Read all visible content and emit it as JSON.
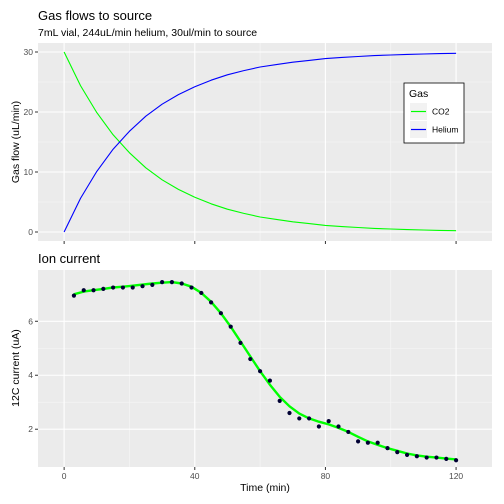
{
  "chart_data": [
    {
      "type": "line",
      "title": "Gas flows to source",
      "subtitle": "7mL vial, 244uL/min helium, 30ul/min to source",
      "xlabel": "",
      "ylabel": "Gas flow (uL/min)",
      "xlim": [
        -8,
        131
      ],
      "ylim": [
        -1.5,
        31.5
      ],
      "y_ticks": [
        0,
        10,
        20,
        30
      ],
      "x_tick_positions": [
        0,
        40,
        80,
        120
      ],
      "x_tick_labels_shown": false,
      "grid": true,
      "legend": {
        "title": "Gas",
        "position": "right",
        "entries": [
          "CO2",
          "Helium"
        ]
      },
      "series": [
        {
          "name": "CO2",
          "color": "#00ff00",
          "x": [
            0,
            5,
            10,
            15,
            20,
            25,
            30,
            35,
            40,
            45,
            50,
            55,
            60,
            65,
            70,
            75,
            80,
            85,
            90,
            95,
            100,
            105,
            110,
            115,
            120
          ],
          "values": [
            30.0,
            24.4,
            19.9,
            16.2,
            13.2,
            10.7,
            8.7,
            7.1,
            5.8,
            4.7,
            3.8,
            3.1,
            2.5,
            2.1,
            1.7,
            1.4,
            1.1,
            0.9,
            0.75,
            0.6,
            0.5,
            0.4,
            0.33,
            0.27,
            0.22
          ]
        },
        {
          "name": "Helium",
          "color": "#0000ff",
          "x": [
            0,
            5,
            10,
            15,
            20,
            25,
            30,
            35,
            40,
            45,
            50,
            55,
            60,
            65,
            70,
            75,
            80,
            85,
            90,
            95,
            100,
            105,
            110,
            115,
            120
          ],
          "values": [
            0.0,
            5.6,
            10.1,
            13.8,
            16.8,
            19.3,
            21.3,
            22.9,
            24.2,
            25.3,
            26.2,
            26.9,
            27.5,
            27.9,
            28.3,
            28.6,
            28.9,
            29.1,
            29.25,
            29.4,
            29.5,
            29.6,
            29.67,
            29.73,
            29.78
          ]
        }
      ]
    },
    {
      "type": "scatter",
      "title": "Ion current",
      "xlabel": "Time (min)",
      "ylabel": "12C current (uA)",
      "xlim": [
        -8,
        131
      ],
      "ylim": [
        0.6,
        7.9
      ],
      "x_ticks": [
        0,
        40,
        80,
        120
      ],
      "y_ticks": [
        2,
        4,
        6
      ],
      "grid": true,
      "series": [
        {
          "name": "",
          "type": "scatter",
          "color": "#000033",
          "x": [
            3,
            6,
            9,
            12,
            15,
            18,
            21,
            24,
            27,
            30,
            33,
            36,
            39,
            42,
            45,
            48,
            51,
            54,
            57,
            60,
            63,
            66,
            69,
            72,
            75,
            78,
            81,
            84,
            87,
            90,
            93,
            96,
            99,
            102,
            105,
            108,
            111,
            114,
            117,
            120
          ],
          "values": [
            6.95,
            7.15,
            7.15,
            7.2,
            7.25,
            7.25,
            7.25,
            7.3,
            7.35,
            7.45,
            7.45,
            7.4,
            7.25,
            7.05,
            6.7,
            6.3,
            5.8,
            5.2,
            4.6,
            4.15,
            3.8,
            3.05,
            2.6,
            2.4,
            2.4,
            2.1,
            2.3,
            2.1,
            1.9,
            1.55,
            1.5,
            1.5,
            1.3,
            1.15,
            1.05,
            1.0,
            0.95,
            0.95,
            0.9,
            0.85
          ]
        },
        {
          "name": "",
          "type": "line",
          "color": "#00ff00",
          "x": [
            3,
            6,
            9,
            12,
            15,
            18,
            21,
            24,
            27,
            30,
            33,
            36,
            39,
            42,
            45,
            48,
            51,
            54,
            57,
            60,
            63,
            66,
            69,
            72,
            75,
            78,
            81,
            84,
            87,
            90,
            93,
            96,
            99,
            102,
            105,
            108,
            111,
            114,
            117,
            120
          ],
          "values": [
            7.0,
            7.1,
            7.15,
            7.2,
            7.25,
            7.28,
            7.32,
            7.36,
            7.4,
            7.43,
            7.45,
            7.4,
            7.28,
            7.05,
            6.72,
            6.3,
            5.8,
            5.25,
            4.7,
            4.15,
            3.65,
            3.2,
            2.85,
            2.58,
            2.4,
            2.28,
            2.18,
            2.05,
            1.9,
            1.72,
            1.55,
            1.42,
            1.3,
            1.2,
            1.1,
            1.03,
            0.98,
            0.95,
            0.91,
            0.88
          ]
        }
      ]
    }
  ]
}
